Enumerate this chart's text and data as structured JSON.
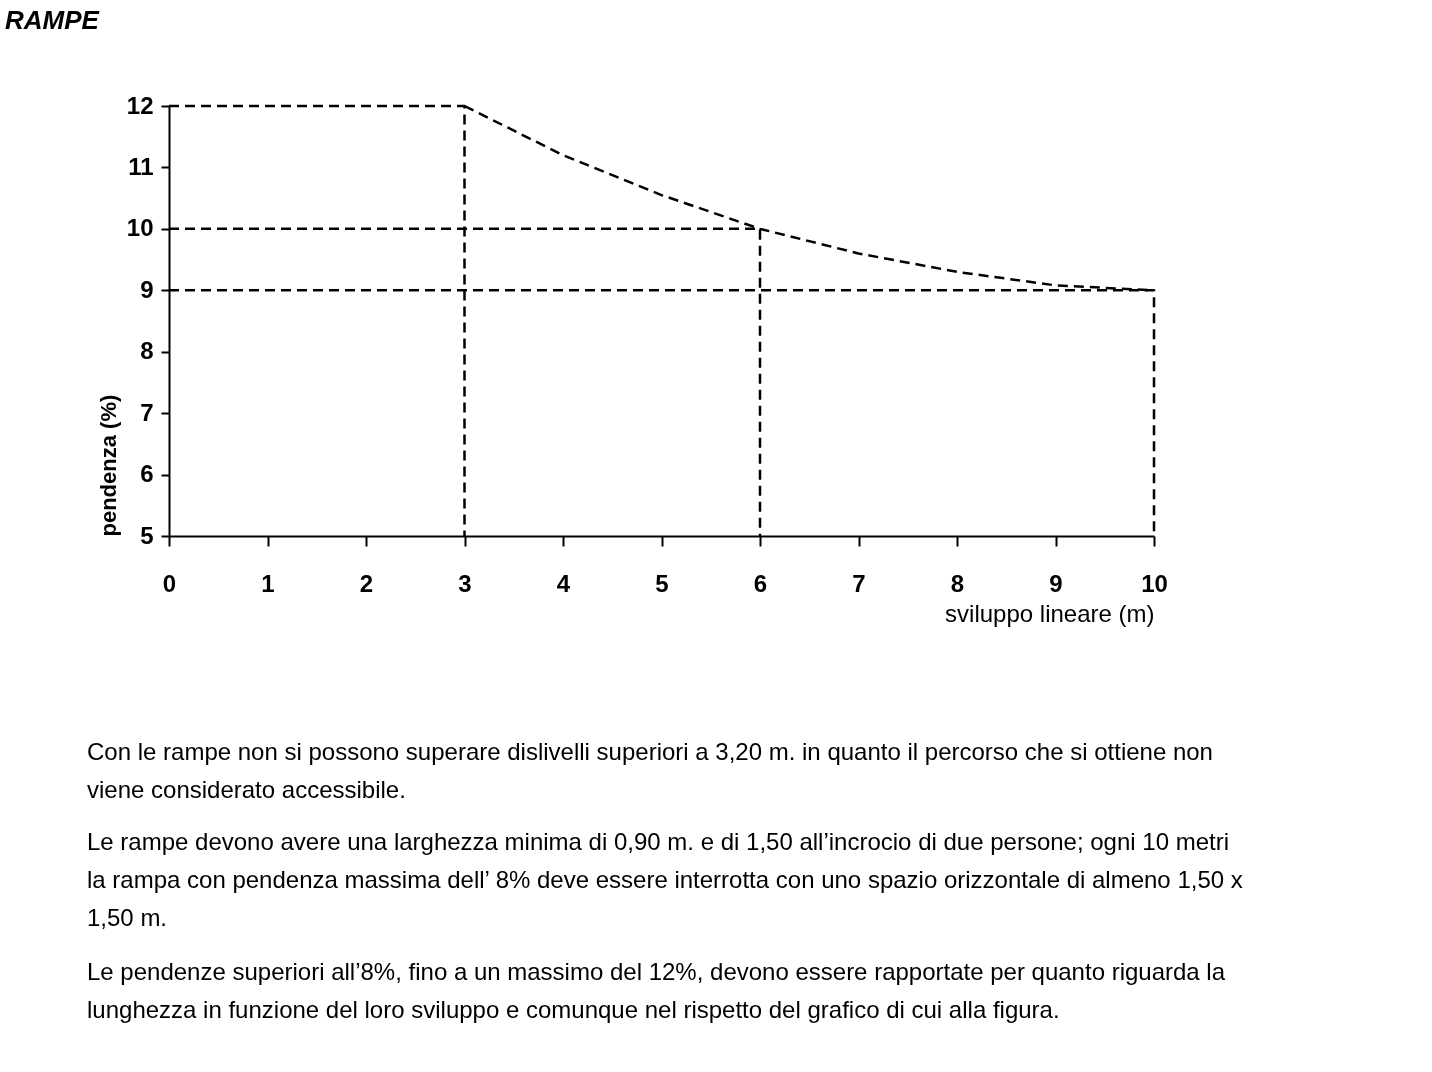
{
  "chart_data": {
    "type": "line",
    "title": "RAMPE",
    "xlabel": "sviluppo lineare (m)",
    "ylabel": "pendenza (%)",
    "series": [
      {
        "color": "#000000",
        "x": [
          3,
          4,
          5,
          6,
          7,
          8,
          9,
          10
        ],
        "values": [
          12,
          11.2,
          10.55,
          10,
          9.6,
          9.3,
          9.08,
          9
        ]
      },
      {
        "color": "#000000",
        "x": [
          0,
          3,
          3
        ],
        "values": [
          12,
          12,
          5
        ]
      },
      {
        "color": "#000000",
        "x": [
          0,
          6,
          6
        ],
        "values": [
          10,
          10,
          5
        ]
      },
      {
        "color": "#000000",
        "x": [
          0,
          10,
          10
        ],
        "values": [
          9,
          9,
          5
        ]
      }
    ],
    "xlim": [
      0,
      10
    ],
    "xticks": [
      0,
      1,
      2,
      3,
      4,
      5,
      6,
      7,
      8,
      9,
      10
    ],
    "ylim": [
      5,
      12
    ],
    "yticks": [
      5,
      6,
      7,
      8,
      9,
      10,
      11,
      12
    ],
    "grid": false,
    "marker": "none",
    "line_style": "dashed",
    "annotations": [
      "Con le rampe non si possono superare dislivelli superiori a 3,20 m. in quanto il percorso che si ottiene non viene considerato accessibile.",
      "Le rampe devono avere una larghezza minima di 0,90 m. e di 1,50 all’incrocio di due persone; ogni 10 metri la rampa con pendenza massima dell’ 8% deve essere interrotta con uno spazio orizzontale di almeno 1,50 x 1,50 m.",
      "Le pendenze superiori all’8%, fino a un massimo del 12%, devono essere rapportate per quanto riguarda la lunghezza in funzione del loro sviluppo e comunque nel rispetto del grafico di cui alla figura."
    ]
  }
}
